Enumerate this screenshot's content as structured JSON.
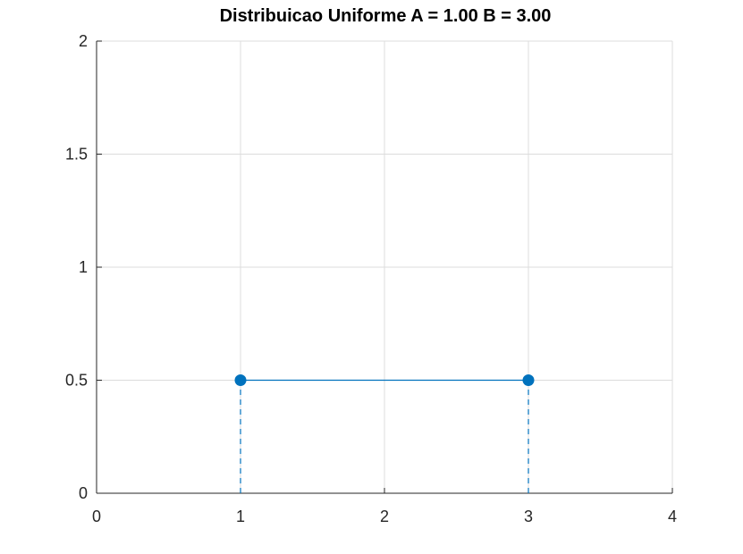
{
  "chart_data": {
    "type": "line",
    "title": "Distribuicao Uniforme A = 1.00  B = 3.00",
    "xlabel": "",
    "ylabel": "",
    "xlim": [
      0,
      4
    ],
    "ylim": [
      0,
      2
    ],
    "x_ticks": [
      "0",
      "1",
      "2",
      "3",
      "4"
    ],
    "y_ticks": [
      "0",
      "0.5",
      "1",
      "1.5",
      "2"
    ],
    "grid": true,
    "series": [
      {
        "x": [
          1,
          3
        ],
        "y": [
          0.5,
          0.5
        ],
        "style": "solid-with-markers",
        "color": "#0072bd"
      }
    ],
    "stems": [
      {
        "x": 1,
        "y_from": 0,
        "y_to": 0.5,
        "style": "dashed",
        "color": "#0072bd"
      },
      {
        "x": 3,
        "y_from": 0,
        "y_to": 0.5,
        "style": "dashed",
        "color": "#0072bd"
      }
    ]
  }
}
